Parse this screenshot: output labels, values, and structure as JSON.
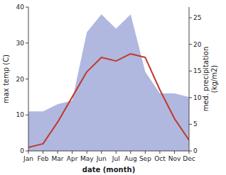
{
  "chart_data": {
    "type": "line",
    "categories": [
      "Jan",
      "Feb",
      "Mar",
      "Apr",
      "May",
      "Jun",
      "Jul",
      "Aug",
      "Sep",
      "Oct",
      "Nov",
      "Dec"
    ],
    "series": [
      {
        "type": "area",
        "color": "#b0b8e0",
        "values": [
          11,
          11,
          13,
          14,
          33,
          38,
          34,
          38,
          22,
          16,
          16,
          15
        ]
      },
      {
        "type": "line",
        "color": "#c0392b",
        "values": [
          1,
          2,
          8,
          15,
          22,
          26,
          25,
          27,
          26,
          17,
          9,
          3
        ]
      }
    ],
    "xlabel": "date (month)",
    "ylabel": "max temp (C)",
    "y2label": "med. precipitation\n(kg/m2)",
    "ylim": [
      0,
      40
    ],
    "yticks": [
      0,
      10,
      20,
      30,
      40
    ],
    "y2lim": [
      0,
      27
    ],
    "y2ticks": [
      0,
      5,
      10,
      15,
      20,
      25
    ]
  }
}
